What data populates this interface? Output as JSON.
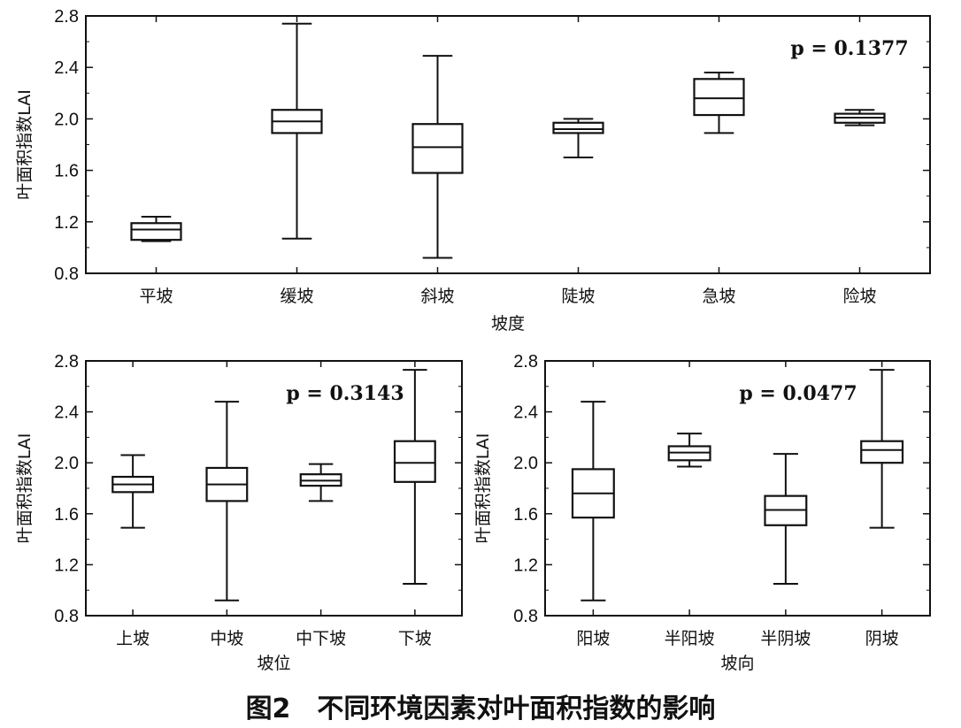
{
  "caption": "图2　不同环境因素对叶面积指数的影响",
  "chart_data": [
    {
      "type": "box",
      "xlabel": "坡度",
      "ylabel": "叶面积指数LAI",
      "annotation": "p = 0.1377",
      "ylim": [
        0.8,
        2.8
      ],
      "yticks": [
        "0.8",
        "1.2",
        "1.6",
        "2.0",
        "2.4",
        "2.8"
      ],
      "categories": [
        "平坡",
        "缓坡",
        "斜坡",
        "陡坡",
        "急坡",
        "险坡"
      ],
      "boxes": [
        {
          "min": 1.05,
          "q1": 1.06,
          "median": 1.14,
          "q3": 1.19,
          "max": 1.24
        },
        {
          "min": 1.07,
          "q1": 1.89,
          "median": 1.98,
          "q3": 2.07,
          "max": 2.74
        },
        {
          "min": 0.92,
          "q1": 1.58,
          "median": 1.78,
          "q3": 1.96,
          "max": 2.49
        },
        {
          "min": 1.7,
          "q1": 1.89,
          "median": 1.92,
          "q3": 1.97,
          "max": 2.0
        },
        {
          "min": 1.89,
          "q1": 2.03,
          "median": 2.16,
          "q3": 2.31,
          "max": 2.36
        },
        {
          "min": 1.95,
          "q1": 1.97,
          "median": 2.01,
          "q3": 2.04,
          "max": 2.07
        }
      ]
    },
    {
      "type": "box",
      "xlabel": "坡位",
      "ylabel": "叶面积指数LAI",
      "annotation": "p = 0.3143",
      "ylim": [
        0.8,
        2.8
      ],
      "yticks": [
        "0.8",
        "1.2",
        "1.6",
        "2.0",
        "2.4",
        "2.8"
      ],
      "categories": [
        "上坡",
        "中坡",
        "中下坡",
        "下坡"
      ],
      "boxes": [
        {
          "min": 1.49,
          "q1": 1.77,
          "median": 1.83,
          "q3": 1.89,
          "max": 2.06
        },
        {
          "min": 0.92,
          "q1": 1.7,
          "median": 1.83,
          "q3": 1.96,
          "max": 2.48
        },
        {
          "min": 1.7,
          "q1": 1.82,
          "median": 1.86,
          "q3": 1.91,
          "max": 1.99
        },
        {
          "min": 1.05,
          "q1": 1.85,
          "median": 2.0,
          "q3": 2.17,
          "max": 2.73
        }
      ]
    },
    {
      "type": "box",
      "xlabel": "坡向",
      "ylabel": "叶面积指数LAI",
      "annotation": "p = 0.0477",
      "ylim": [
        0.8,
        2.8
      ],
      "yticks": [
        "0.8",
        "1.2",
        "1.6",
        "2.0",
        "2.4",
        "2.8"
      ],
      "categories": [
        "阳坡",
        "半阳坡",
        "半阴坡",
        "阴坡"
      ],
      "boxes": [
        {
          "min": 0.92,
          "q1": 1.57,
          "median": 1.76,
          "q3": 1.95,
          "max": 2.48
        },
        {
          "min": 1.97,
          "q1": 2.02,
          "median": 2.08,
          "q3": 2.13,
          "max": 2.23
        },
        {
          "min": 1.05,
          "q1": 1.51,
          "median": 1.63,
          "q3": 1.74,
          "max": 2.07
        },
        {
          "min": 1.49,
          "q1": 2.0,
          "median": 2.1,
          "q3": 2.17,
          "max": 2.73
        }
      ]
    }
  ]
}
